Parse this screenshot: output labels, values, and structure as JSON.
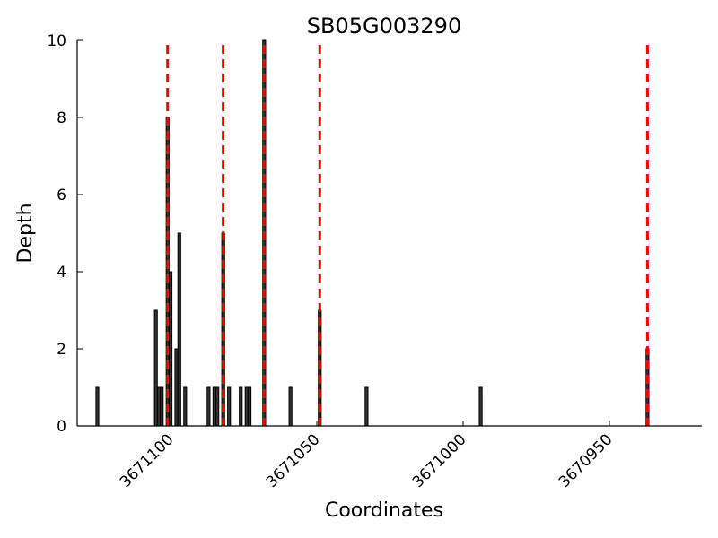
{
  "chart_data": {
    "type": "bar",
    "title": "SB05G003290",
    "xlabel": "Coordinates",
    "ylabel": "Depth",
    "x_reversed": true,
    "xlim": [
      3671125,
      3670940
    ],
    "ylim": [
      0,
      10
    ],
    "yticks": [
      0,
      2,
      4,
      6,
      8,
      10
    ],
    "xticks": [
      3671100,
      3671050,
      3671000,
      3670950
    ],
    "xtick_labels": [
      "3671100",
      "3671050",
      "3671000",
      "3670950"
    ],
    "grid": false,
    "bar_color": "#333333",
    "marker_color": "#ff0000",
    "bars": [
      {
        "x": 3671125,
        "depth": 1
      },
      {
        "x": 3671105,
        "depth": 3
      },
      {
        "x": 3671104,
        "depth": 1
      },
      {
        "x": 3671103,
        "depth": 1
      },
      {
        "x": 3671101,
        "depth": 8
      },
      {
        "x": 3671100,
        "depth": 4
      },
      {
        "x": 3671098,
        "depth": 2
      },
      {
        "x": 3671097,
        "depth": 5
      },
      {
        "x": 3671095,
        "depth": 1
      },
      {
        "x": 3671087,
        "depth": 1
      },
      {
        "x": 3671085,
        "depth": 1
      },
      {
        "x": 3671084,
        "depth": 1
      },
      {
        "x": 3671082,
        "depth": 5
      },
      {
        "x": 3671080,
        "depth": 1
      },
      {
        "x": 3671076,
        "depth": 1
      },
      {
        "x": 3671074,
        "depth": 1
      },
      {
        "x": 3671073,
        "depth": 1
      },
      {
        "x": 3671068,
        "depth": 10
      },
      {
        "x": 3671059,
        "depth": 1
      },
      {
        "x": 3671049,
        "depth": 3
      },
      {
        "x": 3671033,
        "depth": 1
      },
      {
        "x": 3670994,
        "depth": 1
      },
      {
        "x": 3670937,
        "depth": 2
      }
    ],
    "markers": [
      3671101,
      3671082,
      3671068,
      3671049,
      3670937
    ]
  }
}
